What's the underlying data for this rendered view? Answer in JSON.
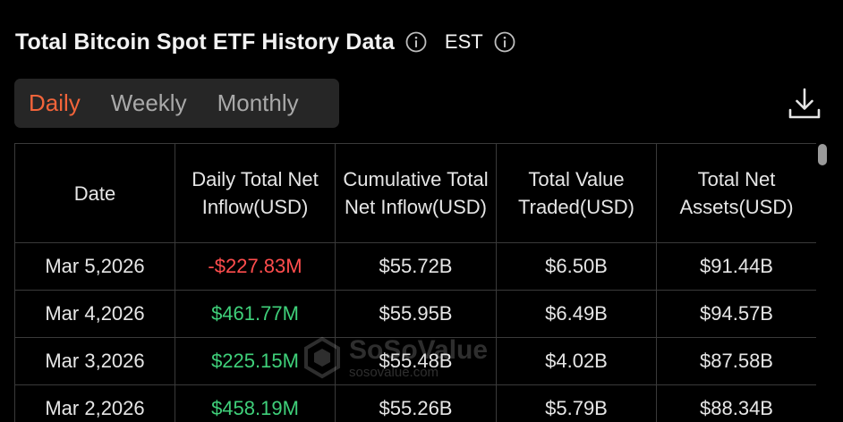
{
  "header": {
    "title": "Total Bitcoin Spot ETF History Data",
    "title_info_icon": "info-icon",
    "timezone": "EST",
    "timezone_info_icon": "info-icon"
  },
  "tabs": [
    {
      "label": "Daily",
      "active": true
    },
    {
      "label": "Weekly",
      "active": false
    },
    {
      "label": "Monthly",
      "active": false
    }
  ],
  "toolbar": {
    "download_icon": "download-icon"
  },
  "colors": {
    "accent": "#f2643a",
    "negative": "#ff4d4d",
    "positive": "#3fd07a",
    "background": "#000000",
    "tabs_background": "#262626"
  },
  "table": {
    "headers": {
      "date": "Date",
      "daily_net_inflow": "Daily Total Net Inflow(USD)",
      "cumulative_net_inflow": "Cumulative Total Net Inflow(USD)",
      "total_value_traded": "Total Value Traded(USD)",
      "total_net_assets": "Total Net Assets(USD)"
    },
    "rows": [
      {
        "date": "Mar 5,2026",
        "daily_net_inflow": "-$227.83M",
        "cumulative_net_inflow": "$55.72B",
        "total_value_traded": "$6.50B",
        "total_net_assets": "$91.44B"
      },
      {
        "date": "Mar 4,2026",
        "daily_net_inflow": "$461.77M",
        "cumulative_net_inflow": "$55.95B",
        "total_value_traded": "$6.49B",
        "total_net_assets": "$94.57B"
      },
      {
        "date": "Mar 3,2026",
        "daily_net_inflow": "$225.15M",
        "cumulative_net_inflow": "$55.48B",
        "total_value_traded": "$4.02B",
        "total_net_assets": "$87.58B"
      },
      {
        "date": "Mar 2,2026",
        "daily_net_inflow": "$458.19M",
        "cumulative_net_inflow": "$55.26B",
        "total_value_traded": "$5.79B",
        "total_net_assets": "$88.34B"
      }
    ]
  },
  "watermark": {
    "name": "SoSoValue",
    "url": "sosovalue.com"
  }
}
